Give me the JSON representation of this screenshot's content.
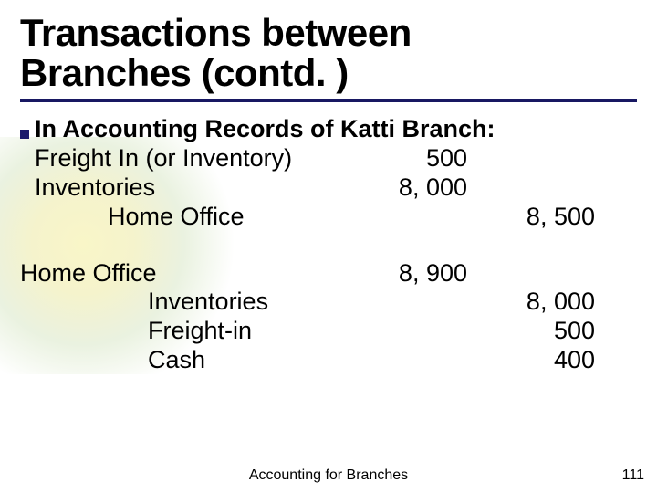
{
  "slide": {
    "title_line1": "Transactions between",
    "title_line2": "Branches (contd. )",
    "underline_color": "#181862",
    "bullet_color": "#1a1a6b",
    "background_gradient": {
      "inner": "#f9f6c8",
      "mid": "#eaf2e0",
      "outer": "#ffffff"
    }
  },
  "content": {
    "heading": "In Accounting Records of Katti Branch:",
    "entry1": {
      "line1": {
        "acct": "Freight In  (or Inventory)",
        "debit": "500"
      },
      "line2": {
        "acct": "Inventories",
        "debit": "8, 000"
      },
      "line3": {
        "acct": "Home Office",
        "credit": "8, 500"
      }
    },
    "entry2": {
      "line1": {
        "acct": "Home Office",
        "debit": "8, 900"
      },
      "line2": {
        "acct": "Inventories",
        "credit": "8, 000"
      },
      "line3": {
        "acct": "Freight-in",
        "credit": "500"
      },
      "line4": {
        "acct": " Cash",
        "credit": "400"
      }
    }
  },
  "footer": {
    "center": "Accounting for Branches",
    "page": "111"
  },
  "typography": {
    "title_fontsize": 42,
    "body_fontsize": 27,
    "footer_fontsize": 16,
    "font_family": "Arial"
  }
}
